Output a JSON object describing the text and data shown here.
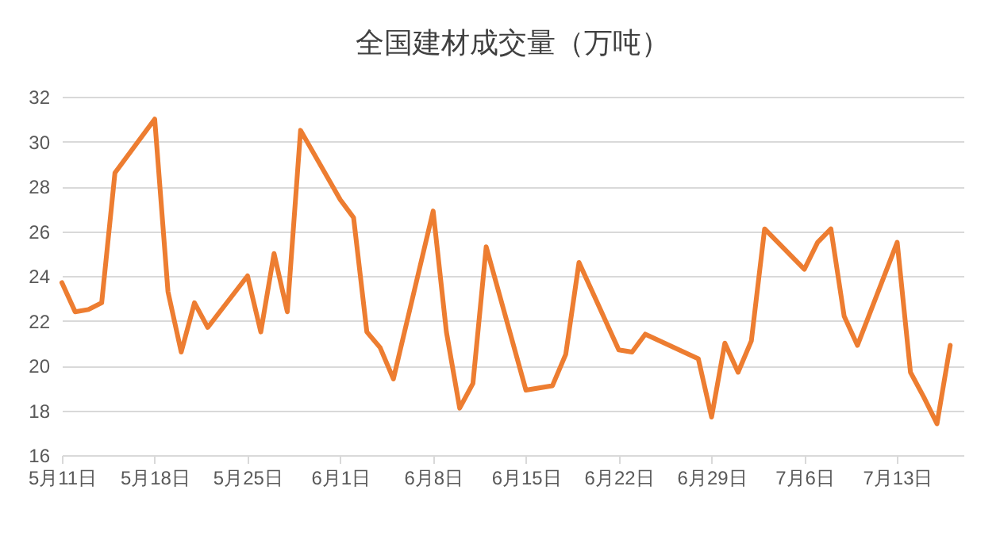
{
  "chart_data": {
    "type": "line",
    "title": "全国建材成交量（万吨）",
    "x": [
      "--05-11",
      "--05-12",
      "--05-13",
      "--05-14",
      "--05-15",
      "--05-18",
      "--05-19",
      "--05-20",
      "--05-21",
      "--05-22",
      "--05-25",
      "--05-26",
      "--05-27",
      "--05-28",
      "--05-29",
      "--06-01",
      "--06-02",
      "--06-03",
      "--06-04",
      "--06-05",
      "--06-08",
      "--06-09",
      "--06-10",
      "--06-11",
      "--06-12",
      "--06-15",
      "--06-16",
      "--06-17",
      "--06-18",
      "--06-19",
      "--06-22",
      "--06-23",
      "--06-24",
      "--06-28",
      "--06-29",
      "--06-30",
      "--07-01",
      "--07-02",
      "--07-03",
      "--07-06",
      "--07-07",
      "--07-08",
      "--07-09",
      "--07-10",
      "--07-13",
      "--07-14",
      "--07-15",
      "--07-16",
      "--07-17"
    ],
    "series": [
      {
        "color": "#ed7d31",
        "values": [
          23.7,
          22.4,
          22.5,
          22.8,
          28.6,
          31.0,
          23.3,
          20.6,
          22.8,
          21.7,
          24.0,
          21.5,
          25.0,
          22.4,
          30.5,
          27.4,
          26.6,
          21.5,
          20.8,
          19.4,
          26.9,
          21.5,
          18.1,
          19.2,
          25.3,
          18.9,
          19.0,
          19.1,
          20.5,
          24.6,
          20.7,
          20.6,
          21.4,
          20.3,
          17.7,
          21.0,
          19.7,
          21.1,
          26.1,
          24.3,
          25.5,
          26.1,
          22.2,
          20.9,
          25.5,
          19.7,
          18.6,
          17.4,
          20.9
        ]
      }
    ],
    "xlim": [
      "--05-11",
      "--07-18"
    ],
    "xticks": [
      {
        "value": "--05-11",
        "label": "5月11日"
      },
      {
        "value": "--05-18",
        "label": "5月18日"
      },
      {
        "value": "--05-25",
        "label": "5月25日"
      },
      {
        "value": "--06-01",
        "label": "6月1日"
      },
      {
        "value": "--06-08",
        "label": "6月8日"
      },
      {
        "value": "--06-15",
        "label": "6月15日"
      },
      {
        "value": "--06-22",
        "label": "6月22日"
      },
      {
        "value": "--06-29",
        "label": "6月29日"
      },
      {
        "value": "--07-06",
        "label": "7月6日"
      },
      {
        "value": "--07-13",
        "label": "7月13日"
      }
    ],
    "ylim": [
      16,
      32
    ],
    "yticks": [
      16,
      18,
      20,
      22,
      24,
      26,
      28,
      30,
      32
    ],
    "grid": "y",
    "marker": "none",
    "line_style": "solid"
  }
}
